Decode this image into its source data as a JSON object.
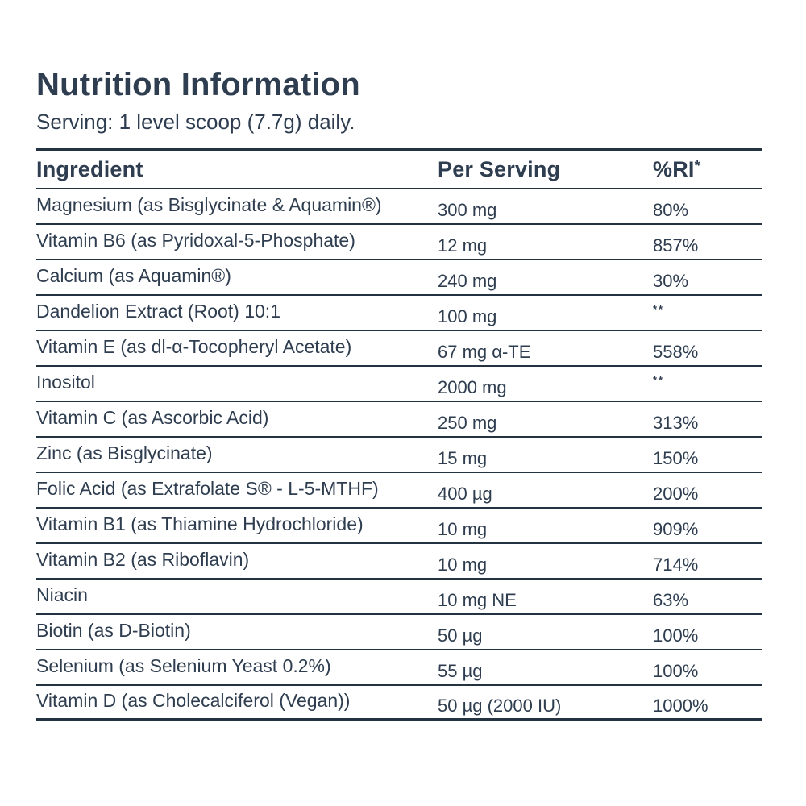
{
  "page": {
    "title": "Nutrition Information",
    "serving_line": "Serving: 1 level scoop (7.7g) daily.",
    "accent_color": "#2e3d4f",
    "rule_color": "#243341",
    "background_color": "#ffffff"
  },
  "table": {
    "headers": {
      "ingredient": "Ingredient",
      "per_serving": "Per Serving",
      "ri_label": "%RI",
      "ri_sup": "*"
    },
    "footnote_marker": "**",
    "rows": [
      {
        "ingredient": "Magnesium (as Bisglycinate & Aquamin®)",
        "per_serving": "300 mg",
        "ri": "80%"
      },
      {
        "ingredient": "Vitamin B6 (as Pyridoxal-5-Phosphate)",
        "per_serving": "12 mg",
        "ri": "857%"
      },
      {
        "ingredient": "Calcium (as Aquamin®)",
        "per_serving": "240 mg",
        "ri": "30%"
      },
      {
        "ingredient": "Dandelion Extract (Root) 10:1",
        "per_serving": "100 mg",
        "ri": "**"
      },
      {
        "ingredient": "Vitamin E (as dl-α-Tocopheryl Acetate)",
        "per_serving": "67 mg α-TE",
        "ri": "558%"
      },
      {
        "ingredient": "Inositol",
        "per_serving": "2000 mg",
        "ri": "**"
      },
      {
        "ingredient": "Vitamin C (as Ascorbic Acid)",
        "per_serving": "250 mg",
        "ri": "313%"
      },
      {
        "ingredient": "Zinc (as Bisglycinate)",
        "per_serving": "15 mg",
        "ri": "150%"
      },
      {
        "ingredient": "Folic Acid (as Extrafolate S® - L-5-MTHF)",
        "per_serving": "400 µg",
        "ri": "200%"
      },
      {
        "ingredient": "Vitamin B1 (as Thiamine Hydrochloride)",
        "per_serving": "10 mg",
        "ri": "909%"
      },
      {
        "ingredient": "Vitamin B2 (as Riboflavin)",
        "per_serving": "10 mg",
        "ri": "714%"
      },
      {
        "ingredient": "Niacin",
        "per_serving": "10 mg NE",
        "ri": "63%"
      },
      {
        "ingredient": "Biotin (as D-Biotin)",
        "per_serving": "50 µg",
        "ri": "100%"
      },
      {
        "ingredient": "Selenium (as Selenium Yeast 0.2%)",
        "per_serving": "55 µg",
        "ri": "100%"
      },
      {
        "ingredient": "Vitamin D (as Cholecalciferol (Vegan))",
        "per_serving": "50 µg (2000 IU)",
        "ri": "1000%"
      }
    ]
  }
}
